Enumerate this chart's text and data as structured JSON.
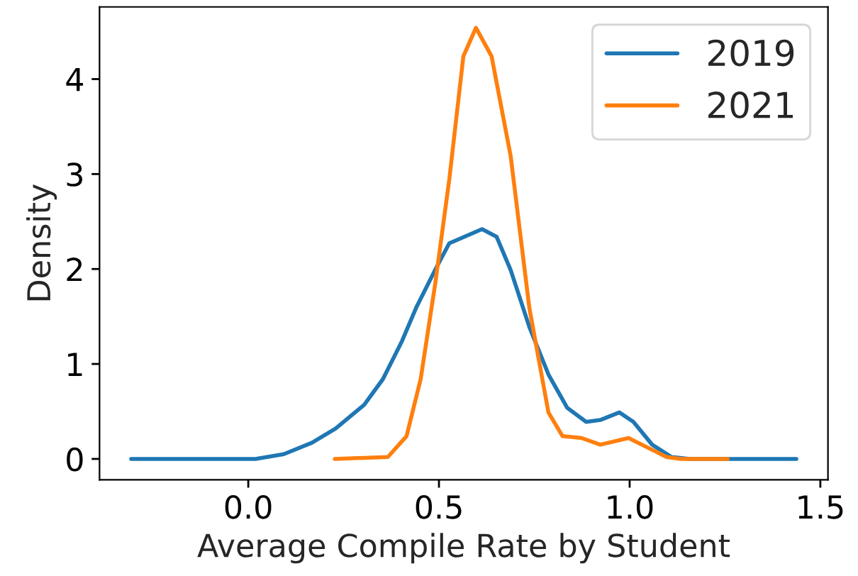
{
  "chart_data": {
    "type": "line",
    "xlabel": "Average Compile Rate by Student",
    "ylabel": "Density",
    "xlim": [
      -0.39,
      1.52
    ],
    "ylim": [
      -0.22,
      4.76
    ],
    "xticks": [
      {
        "value": 0,
        "label": "0.0"
      },
      0.5,
      {
        "value": 1,
        "label": "1.0"
      },
      1.5
    ],
    "yticks": [
      0,
      1,
      2,
      3,
      4
    ],
    "grid": false,
    "legend": "top right",
    "series": [
      {
        "name": "2019",
        "color": "#1f77b4",
        "x": [
          -0.307,
          0.019,
          0.093,
          0.167,
          0.229,
          0.304,
          0.353,
          0.403,
          0.44,
          0.49,
          0.527,
          0.613,
          0.651,
          0.688,
          0.737,
          0.787,
          0.836,
          0.886,
          0.923,
          0.973,
          1.01,
          1.059,
          1.11,
          1.158,
          1.437
        ],
        "values": [
          0,
          0,
          0.05,
          0.17,
          0.32,
          0.57,
          0.84,
          1.24,
          1.59,
          1.99,
          2.27,
          2.42,
          2.34,
          1.99,
          1.39,
          0.89,
          0.54,
          0.39,
          0.41,
          0.49,
          0.39,
          0.15,
          0.02,
          0,
          0
        ]
      },
      {
        "name": "2021",
        "color": "#ff7f0e",
        "x": [
          0.227,
          0.366,
          0.415,
          0.452,
          0.49,
          0.527,
          0.564,
          0.597,
          0.638,
          0.688,
          0.737,
          0.787,
          0.824,
          0.874,
          0.923,
          0.997,
          1.047,
          1.097,
          1.134,
          1.257
        ],
        "values": [
          0,
          0.02,
          0.24,
          0.84,
          1.84,
          2.94,
          4.24,
          4.54,
          4.24,
          3.19,
          1.59,
          0.49,
          0.24,
          0.22,
          0.15,
          0.22,
          0.12,
          0.02,
          0,
          0
        ]
      }
    ]
  }
}
